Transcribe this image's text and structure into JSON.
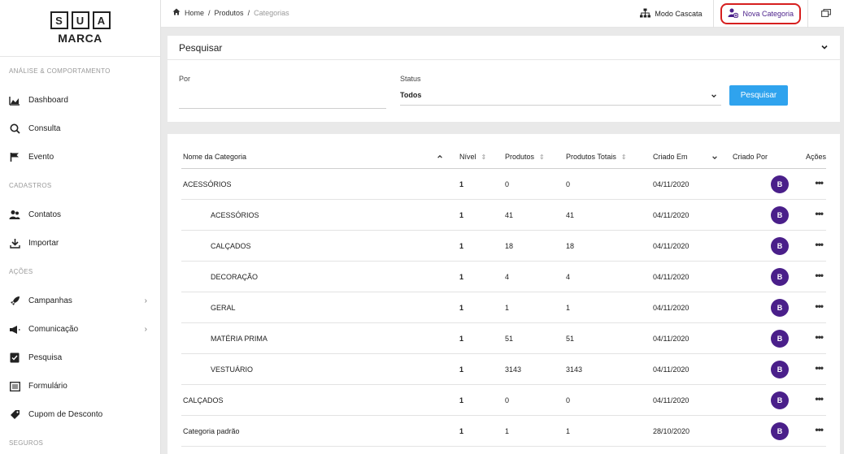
{
  "logo": {
    "letters": [
      "S",
      "U",
      "A"
    ],
    "word": "MARCA"
  },
  "sidebar": {
    "sections": [
      {
        "title": "ANÁLISE & COMPORTAMENTO",
        "items": [
          {
            "label": "Dashboard",
            "icon": "chart-area-icon"
          },
          {
            "label": "Consulta",
            "icon": "search-icon"
          },
          {
            "label": "Evento",
            "icon": "flag-icon"
          }
        ]
      },
      {
        "title": "CADASTROS",
        "items": [
          {
            "label": "Contatos",
            "icon": "contacts-icon"
          },
          {
            "label": "Importar",
            "icon": "download-icon"
          }
        ]
      },
      {
        "title": "AÇÕES",
        "items": [
          {
            "label": "Campanhas",
            "icon": "rocket-icon",
            "chevron": "›"
          },
          {
            "label": "Comunicação",
            "icon": "megaphone-icon",
            "chevron": "›"
          },
          {
            "label": "Pesquisa",
            "icon": "survey-icon"
          },
          {
            "label": "Formulário",
            "icon": "form-icon"
          },
          {
            "label": "Cupom de Desconto",
            "icon": "tag-icon"
          }
        ]
      },
      {
        "title": "SEGUROS"
      }
    ]
  },
  "topbar": {
    "breadcrumb": [
      "Home",
      "Produtos",
      "Categorias"
    ],
    "separator": "/",
    "cascade_label": "Modo Cascata",
    "new_category_label": "Nova Categoria"
  },
  "search": {
    "title": "Pesquisar",
    "por_label": "Por",
    "por_value": "",
    "status_label": "Status",
    "status_value": "Todos",
    "button_label": "Pesquisar"
  },
  "table": {
    "columns": [
      "Nome da Categoria",
      "Nível",
      "Produtos",
      "Produtos Totais",
      "Criado Em",
      "Criado Por",
      "Ações"
    ],
    "rows": [
      {
        "name": "ACESSÓRIOS",
        "indent": false,
        "nivel": "1",
        "produtos": "0",
        "totais": "0",
        "criado_em": "04/11/2020",
        "criado_por": "B"
      },
      {
        "name": "ACESSÓRIOS",
        "indent": true,
        "nivel": "1",
        "produtos": "41",
        "totais": "41",
        "criado_em": "04/11/2020",
        "criado_por": "B"
      },
      {
        "name": "CALÇADOS",
        "indent": true,
        "nivel": "1",
        "produtos": "18",
        "totais": "18",
        "criado_em": "04/11/2020",
        "criado_por": "B"
      },
      {
        "name": "DECORAÇÃO",
        "indent": true,
        "nivel": "1",
        "produtos": "4",
        "totais": "4",
        "criado_em": "04/11/2020",
        "criado_por": "B"
      },
      {
        "name": "GERAL",
        "indent": true,
        "nivel": "1",
        "produtos": "1",
        "totais": "1",
        "criado_em": "04/11/2020",
        "criado_por": "B"
      },
      {
        "name": "MATÉRIA PRIMA",
        "indent": true,
        "nivel": "1",
        "produtos": "51",
        "totais": "51",
        "criado_em": "04/11/2020",
        "criado_por": "B"
      },
      {
        "name": "VESTUÁRIO",
        "indent": true,
        "nivel": "1",
        "produtos": "3143",
        "totais": "3143",
        "criado_em": "04/11/2020",
        "criado_por": "B"
      },
      {
        "name": "CALÇADOS",
        "indent": false,
        "nivel": "1",
        "produtos": "0",
        "totais": "0",
        "criado_em": "04/11/2020",
        "criado_por": "B"
      },
      {
        "name": "Categoria padrão",
        "indent": false,
        "nivel": "1",
        "produtos": "1",
        "totais": "1",
        "criado_em": "28/10/2020",
        "criado_por": "B"
      }
    ]
  },
  "colors": {
    "accent": "#4a1f8a",
    "button": "#2fa3ee",
    "highlight": "#d61f1f"
  }
}
